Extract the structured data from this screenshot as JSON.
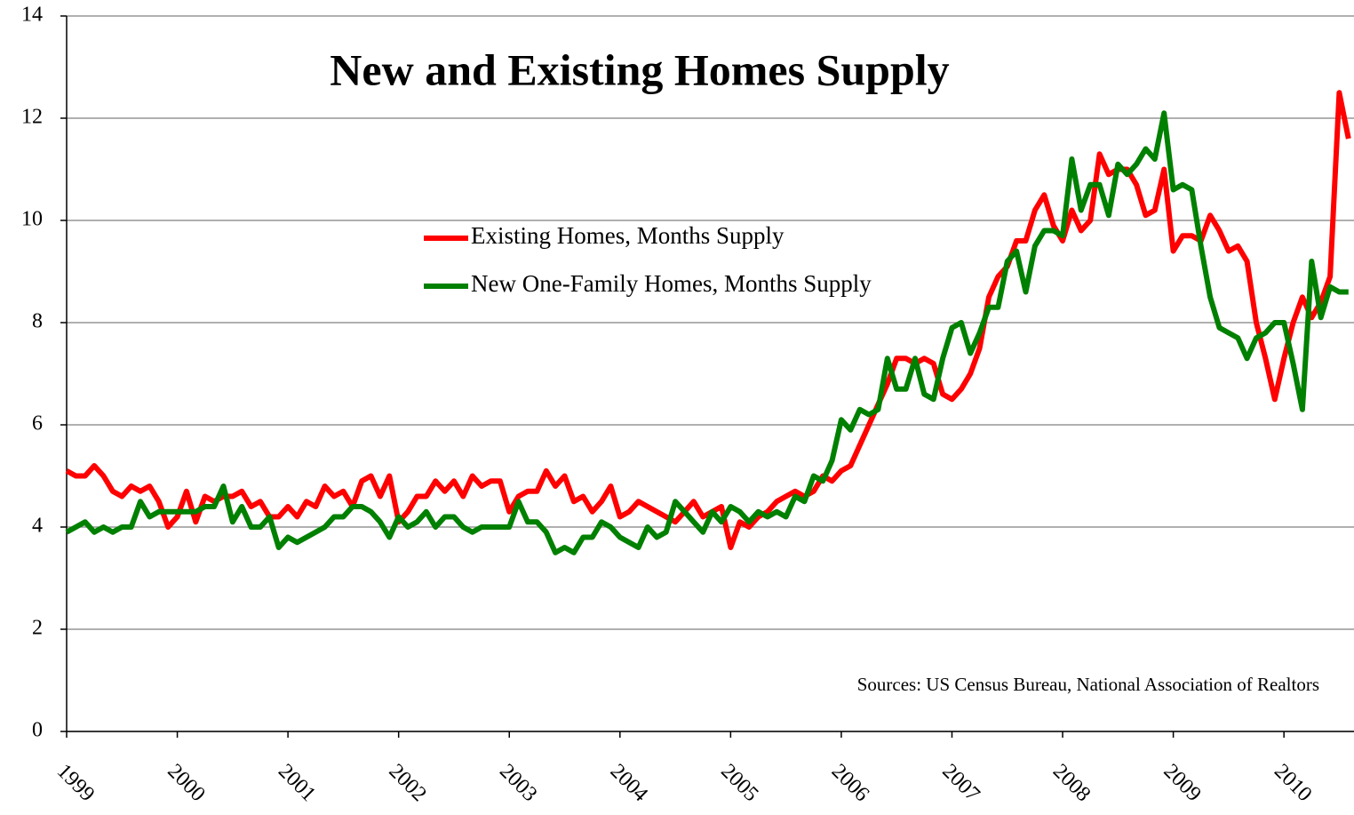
{
  "chart_data": {
    "type": "line",
    "title": "New and Existing Homes Supply",
    "annotation": "Sources:  US Census Bureau, National Association of Realtors",
    "categories": [
      "1999",
      null,
      null,
      null,
      null,
      null,
      null,
      null,
      null,
      null,
      null,
      null,
      "2000",
      null,
      null,
      null,
      null,
      null,
      null,
      null,
      null,
      null,
      null,
      null,
      "2001",
      null,
      null,
      null,
      null,
      null,
      null,
      null,
      null,
      null,
      null,
      null,
      "2002",
      null,
      null,
      null,
      null,
      null,
      null,
      null,
      null,
      null,
      null,
      null,
      "2003",
      null,
      null,
      null,
      null,
      null,
      null,
      null,
      null,
      null,
      null,
      null,
      "2004",
      null,
      null,
      null,
      null,
      null,
      null,
      null,
      null,
      null,
      null,
      null,
      "2005",
      null,
      null,
      null,
      null,
      null,
      null,
      null,
      null,
      null,
      null,
      null,
      "2006",
      null,
      null,
      null,
      null,
      null,
      null,
      null,
      null,
      null,
      null,
      null,
      "2007",
      null,
      null,
      null,
      null,
      null,
      null,
      null,
      null,
      null,
      null,
      null,
      "2008",
      null,
      null,
      null,
      null,
      null,
      null,
      null,
      null,
      null,
      null,
      null,
      "2009",
      null,
      null,
      null,
      null,
      null,
      null,
      null,
      null,
      null,
      null,
      null,
      "2010",
      null,
      null,
      null,
      null,
      null,
      null,
      null
    ],
    "series": [
      {
        "name": "Existing Homes, Months Supply",
        "color": "#ff0000",
        "values": [
          5.1,
          5.0,
          5.0,
          5.2,
          5.0,
          4.7,
          4.6,
          4.8,
          4.7,
          4.8,
          4.5,
          4.0,
          4.2,
          4.7,
          4.1,
          4.6,
          4.5,
          4.6,
          4.6,
          4.7,
          4.4,
          4.5,
          4.2,
          4.2,
          4.4,
          4.2,
          4.5,
          4.4,
          4.8,
          4.6,
          4.7,
          4.4,
          4.9,
          5.0,
          4.6,
          5.0,
          4.1,
          4.3,
          4.6,
          4.6,
          4.9,
          4.7,
          4.9,
          4.6,
          5.0,
          4.8,
          4.9,
          4.9,
          4.3,
          4.6,
          4.7,
          4.7,
          5.1,
          4.8,
          5.0,
          4.5,
          4.6,
          4.3,
          4.5,
          4.8,
          4.2,
          4.3,
          4.5,
          4.4,
          4.3,
          4.2,
          4.1,
          4.3,
          4.5,
          4.2,
          4.3,
          4.4,
          3.6,
          4.1,
          4.0,
          4.2,
          4.3,
          4.5,
          4.6,
          4.7,
          4.6,
          4.7,
          5.0,
          4.9,
          5.1,
          5.2,
          5.6,
          6.0,
          6.4,
          6.8,
          7.3,
          7.3,
          7.2,
          7.3,
          7.2,
          6.6,
          6.5,
          6.7,
          7.0,
          7.5,
          8.5,
          8.9,
          9.1,
          9.6,
          9.6,
          10.2,
          10.5,
          9.9,
          9.6,
          10.2,
          9.8,
          10.0,
          11.3,
          10.9,
          11.0,
          11.0,
          10.7,
          10.1,
          10.2,
          11.0,
          9.4,
          9.7,
          9.7,
          9.6,
          10.1,
          9.8,
          9.4,
          9.5,
          9.2,
          8.0,
          7.3,
          6.5,
          7.3,
          8.0,
          8.5,
          8.1,
          8.4,
          8.9,
          12.5,
          11.6
        ]
      },
      {
        "name": "New One-Family Homes, Months Supply",
        "color": "#008000",
        "values": [
          3.9,
          4.0,
          4.1,
          3.9,
          4.0,
          3.9,
          4.0,
          4.0,
          4.5,
          4.2,
          4.3,
          4.3,
          4.3,
          4.3,
          4.3,
          4.4,
          4.4,
          4.8,
          4.1,
          4.4,
          4.0,
          4.0,
          4.2,
          3.6,
          3.8,
          3.7,
          3.8,
          3.9,
          4.0,
          4.2,
          4.2,
          4.4,
          4.4,
          4.3,
          4.1,
          3.8,
          4.2,
          4.0,
          4.1,
          4.3,
          4.0,
          4.2,
          4.2,
          4.0,
          3.9,
          4.0,
          4.0,
          4.0,
          4.0,
          4.5,
          4.1,
          4.1,
          3.9,
          3.5,
          3.6,
          3.5,
          3.8,
          3.8,
          4.1,
          4.0,
          3.8,
          3.7,
          3.6,
          4.0,
          3.8,
          3.9,
          4.5,
          4.3,
          4.1,
          3.9,
          4.3,
          4.1,
          4.4,
          4.3,
          4.1,
          4.3,
          4.2,
          4.3,
          4.2,
          4.6,
          4.5,
          5.0,
          4.9,
          5.3,
          6.1,
          5.9,
          6.3,
          6.2,
          6.3,
          7.3,
          6.7,
          6.7,
          7.3,
          6.6,
          6.5,
          7.3,
          7.9,
          8.0,
          7.4,
          7.8,
          8.3,
          8.3,
          9.2,
          9.4,
          8.6,
          9.5,
          9.8,
          9.8,
          9.7,
          11.2,
          10.2,
          10.7,
          10.7,
          10.1,
          11.1,
          10.9,
          11.1,
          11.4,
          11.2,
          12.1,
          10.6,
          10.7,
          10.6,
          9.5,
          8.5,
          7.9,
          7.8,
          7.7,
          7.3,
          7.7,
          7.8,
          8.0,
          8.0,
          7.2,
          6.3,
          9.2,
          8.1,
          8.7,
          8.6,
          8.6
        ]
      }
    ],
    "ylim": [
      0,
      14
    ],
    "yticks": [
      0,
      2,
      4,
      6,
      8,
      10,
      12,
      14
    ],
    "grid": true
  }
}
